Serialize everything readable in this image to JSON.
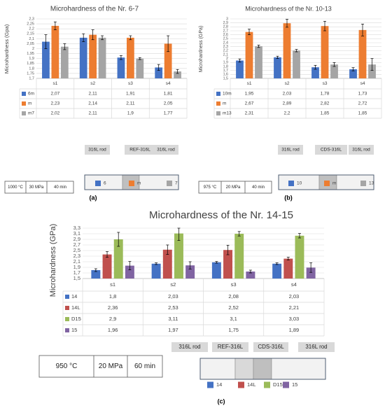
{
  "chart_data": [
    {
      "type": "bar",
      "panel_label": "(a)",
      "title": "Microhardness of the Nr. 6-7",
      "ylabel": "Microhardness (Gpa)",
      "ylim": [
        1.7,
        2.3
      ],
      "yticks": [
        "1,7",
        "1,75",
        "1,8",
        "1,85",
        "1,9",
        "1,95",
        "2",
        "2,05",
        "2,1",
        "2,15",
        "2,2",
        "2,25",
        "2,3"
      ],
      "categories": [
        "s1",
        "s2",
        "s3",
        "s4"
      ],
      "series": [
        {
          "name": "6m",
          "legend_name": "6",
          "color": "#4472C4",
          "values": [
            2.07,
            2.11,
            1.91,
            1.81
          ],
          "labels": [
            "2,07",
            "2,11",
            "1,91",
            "1,81"
          ],
          "errors": [
            0.07,
            0.04,
            0.02,
            0.03
          ]
        },
        {
          "name": "m",
          "legend_name": "m",
          "color": "#ED7D31",
          "values": [
            2.23,
            2.14,
            2.11,
            2.05
          ],
          "labels": [
            "2,23",
            "2,14",
            "2,11",
            "2,05"
          ],
          "errors": [
            0.04,
            0.05,
            0.02,
            0.08
          ]
        },
        {
          "name": "m7",
          "legend_name": "7",
          "color": "#A5A5A5",
          "values": [
            2.02,
            2.11,
            1.9,
            1.77
          ],
          "labels": [
            "2,02",
            "2,11",
            "1,9",
            "1,77"
          ],
          "errors": [
            0.03,
            0.02,
            0.01,
            0.02
          ]
        }
      ],
      "conditions": [
        "1000 °C",
        "30 MPa",
        "40 min"
      ],
      "schematic_labels": [
        "316L rod",
        "REF-316L",
        "316L rod"
      ]
    },
    {
      "type": "bar",
      "panel_label": "(b)",
      "title": "Microhardness of the Nr. 10-13",
      "ylabel": "Microhardness (GPa)",
      "ylim": [
        1.5,
        3.0
      ],
      "yticks": [
        "1,5",
        "1,6",
        "1,7",
        "1,8",
        "1,9",
        "2",
        "2,1",
        "2,2",
        "2,3",
        "2,4",
        "2,5",
        "2,6",
        "2,7",
        "2,8",
        "2,9",
        "3"
      ],
      "categories": [
        "s1",
        "s2",
        "s3",
        "s4"
      ],
      "series": [
        {
          "name": "10m",
          "legend_name": "10",
          "color": "#4472C4",
          "values": [
            1.95,
            2.03,
            1.78,
            1.73
          ],
          "labels": [
            "1,95",
            "2,03",
            "1,78",
            "1,73"
          ],
          "errors": [
            0.04,
            0.03,
            0.05,
            0.04
          ]
        },
        {
          "name": "m",
          "legend_name": "m",
          "color": "#ED7D31",
          "values": [
            2.67,
            2.89,
            2.82,
            2.72
          ],
          "labels": [
            "2,67",
            "2,89",
            "2,82",
            "2,72"
          ],
          "errors": [
            0.07,
            0.1,
            0.12,
            0.15
          ]
        },
        {
          "name": "m13",
          "legend_name": "13",
          "color": "#A5A5A5",
          "values": [
            2.31,
            2.2,
            1.85,
            1.85
          ],
          "labels": [
            "2,31",
            "2,2",
            "1,85",
            "1,85"
          ],
          "errors": [
            0.03,
            0.03,
            0.05,
            0.15
          ]
        }
      ],
      "conditions": [
        "975 °C",
        "20 MPa",
        "40 min"
      ],
      "schematic_labels": [
        "316L rod",
        "CDS-316L",
        "316L rod"
      ]
    },
    {
      "type": "bar",
      "panel_label": "(c)",
      "title": "Microhardness of the Nr. 14-15",
      "ylabel": "Microhardness (GPa)",
      "ylim": [
        1.5,
        3.3
      ],
      "yticks": [
        "1,5",
        "1,7",
        "1,9",
        "2,1",
        "2,3",
        "2,5",
        "2,7",
        "2,9",
        "3,1",
        "3,3"
      ],
      "categories": [
        "s1",
        "s2",
        "s3",
        "s4"
      ],
      "series": [
        {
          "name": "14",
          "legend_name": "14",
          "color": "#4472C4",
          "values": [
            1.8,
            2.03,
            2.08,
            2.03
          ],
          "labels": [
            "1,8",
            "2,03",
            "2,08",
            "2,03"
          ],
          "errors": [
            0.05,
            0.03,
            0.03,
            0.03
          ]
        },
        {
          "name": "14L",
          "legend_name": "14L",
          "color": "#C0504D",
          "values": [
            2.36,
            2.53,
            2.52,
            2.21
          ],
          "labels": [
            "2,36",
            "2,53",
            "2,52",
            "2,21"
          ],
          "errors": [
            0.1,
            0.17,
            0.17,
            0.05
          ]
        },
        {
          "name": "D15",
          "legend_name": "D15",
          "color": "#9BBB59",
          "values": [
            2.9,
            3.11,
            3.1,
            3.03
          ],
          "labels": [
            "2,9",
            "3,11",
            "3,1",
            "3,03"
          ],
          "errors": [
            0.25,
            0.25,
            0.08,
            0.08
          ]
        },
        {
          "name": "15",
          "legend_name": "15",
          "color": "#8064A2",
          "values": [
            1.96,
            1.97,
            1.75,
            1.89
          ],
          "labels": [
            "1,96",
            "1,97",
            "1,75",
            "1,89"
          ],
          "errors": [
            0.15,
            0.13,
            0.05,
            0.17
          ]
        }
      ],
      "conditions": [
        "950 °C",
        "20 MPa",
        "60 min"
      ],
      "schematic_labels": [
        "316L rod",
        "REF-316L",
        "CDS-316L",
        "316L rod"
      ]
    }
  ]
}
